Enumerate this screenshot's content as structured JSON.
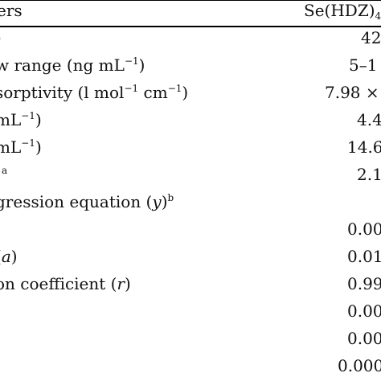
{
  "header": {
    "param_label": "ers",
    "value_label_main": "Se(HDZ)",
    "value_label_sub": "4"
  },
  "rows": [
    {
      "param": ")",
      "value": "42"
    },
    {
      "param": "w range (ng mL",
      "param_sup": "−1",
      "param_tail": ")",
      "value": "5–1"
    },
    {
      "param": "sorptivity (l mol",
      "param_sup": "−1",
      "param_mid": " cm",
      "param_sup2": "−1",
      "param_tail": ")",
      "value": "7.98 ×"
    },
    {
      "param": " mL",
      "param_sup": "−1",
      "param_tail": ")",
      "value": "4.4"
    },
    {
      "param": " mL",
      "param_sup": "−1",
      "param_tail": ")",
      "value": "14.6"
    },
    {
      "param": "a",
      "value": "2.1"
    },
    {
      "param": "gression equation (",
      "param_ital": "y",
      "param_tail": ")",
      "param_sup": "b",
      "value": ""
    },
    {
      "param": "",
      "value": "0.00"
    },
    {
      "param": " (",
      "param_ital": "a",
      "param_tail": ")",
      "value": "0.01"
    },
    {
      "param": "on coefficient (",
      "param_ital": "r",
      "param_tail": ")",
      "value": "0.99"
    },
    {
      "param": "",
      "value": "0.00"
    },
    {
      "param": "",
      "value": "0.00"
    },
    {
      "param": "",
      "value": "0.000"
    }
  ]
}
